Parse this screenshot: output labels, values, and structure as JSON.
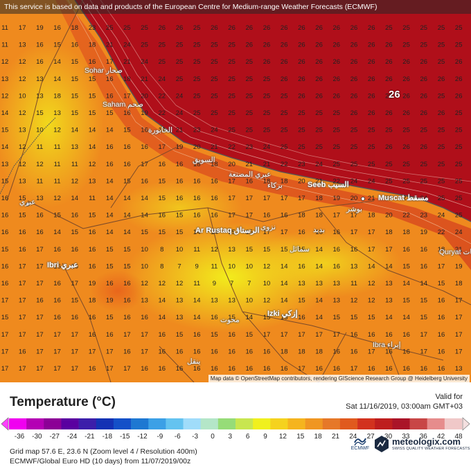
{
  "header": {
    "notice": "This service is based on data and products of the European Centre for Medium-range Weather Forecasts (ECMWF)",
    "attribution": "Map data © OpenStreetMap contributors, rendering GIScience Research Group @ Heidelberg University"
  },
  "map": {
    "max_label": "26",
    "colors": {
      "sea_hot": "#b00f1a",
      "land_warm": "#ef8a1e",
      "land_cool": "#f6d41c"
    },
    "grid_rows": [
      "11 17 19 16 18 23 25 25 25 26 26 25 26 26 26 26 26 26 26 26 26 26 25 25 25 25 25",
      "11 13 16 15 16 18 21 24 25 25 25 25 25 25 26 26 26 26 26 26 26 26 26 25 25 25 25",
      "12 12 16 14 15 16 17 21 24 25 25 25 25 25 25 26 26 26 26 26 26 26 26 26 26 25 26",
      "13 12 13 14 15 15 16 18 21 24 25 25 25 25 25 25 26 26 26 26 26 26 26 26 26 26 26",
      "12 10 13 18 15 15 16 17 20 22 24 25 25 25 25 25 25 26 26 26 26 26 26 26 26 25 26",
      "14 12 15 13 15 15 15 16 19 22 24 25 25 25 25 25 25 25 25 25 26 26 26 26 26 26 25",
      "15 13 10 12 14 14 14 15 16 19 21 23 24 25 25 25 25 25 25 25 25 25 25 25 25 25 25",
      "14 12 11 11 13 14 16 16 16 17 19 20 21 22 23 24 25 25 25 25 25 25 26 26 26 25 25",
      "13 12 12 11 11 12 16 16 17 16 16 18 18 20 21 21 22 23 24 25 25 25 25 25 25 25 25",
      "15 13 11 11 12 13 14 15 16 15 16 16 16 17 16 18 18 20 21 22 24 24 25 25 25 25 25",
      "16 15 13 12 14 11 14 14 14 15 16 16 16 17 17 17 17 17 18 19 20 21 22 23 24 25 25",
      "16 15 16 15 16 15 14 14 14 16 15 16 16 17 17 16 16 18 18 17 17 18 20 22 23 24 25",
      "16 16 16 14 15 16 14 14 15 15 15 14 14 15 15 17 17 16 16 16 17 17 18 18 19 22 24",
      "15 16 17 16 16 16 15 15 10 8 10 11 12 13 15 15 15 15 14 16 16 17 17 16 16 18 21",
      "16 17 17 16 16 16 15 15 10 8 7 9 11 10 10 12 14 16 14 16 13 14 14 15 16 17 19",
      "16 17 17 16 17 19 16 16 12 12 12 11 9 7 7 10 14 13 13 13 11 12 13 14 14 15 18",
      "17 17 16 16 15 18 19 16 13 14 13 14 13 13 10 12 14 15 14 13 12 12 13 15 15 16 17",
      "15 17 17 16 16 16 15 16 16 14 13 14 16 15 14 15 15 16 14 15 15 15 14 14 15 16 17",
      "17 17 17 17 17 16 16 17 17 16 15 16 15 16 15 17 17 17 17 17 16 16 16 16 17 16 17",
      "17 16 17 17 17 17 17 16 17 16 16 16 16 16 16 16 18 18 18 16 16 17 16 16 17 16 17",
      "17 17 17 17 17 16 17 17 16 16 16 16 16 16 16 16 16 17 16 16 17 16 16 16 16 16 13",
      "17 17 17 17 17 16 17 17 16 16 16 16 16 16 16 16 16 17 16 16 17 17 17 17 17 18 17"
    ],
    "cities": [
      {
        "name": "Sohar صحار"
      },
      {
        "name": "Saham صحم"
      },
      {
        "name": "Ibri عبري"
      },
      {
        "name": "Ar Rustaq الرستاق"
      },
      {
        "name": "Izki إزكي"
      },
      {
        "name": "Seeb السيب"
      },
      {
        "name": "Muscat مسقط"
      },
      {
        "name": "Quryat قريات"
      },
      {
        "name": "Ibra إبراء"
      },
      {
        "name": "الخابورة"
      },
      {
        "name": "السويق"
      },
      {
        "name": "عبري المصنعة"
      },
      {
        "name": "بركاء"
      },
      {
        "name": "نزوى"
      },
      {
        "name": "سمائل"
      },
      {
        "name": "بدبد"
      },
      {
        "name": "محوت"
      },
      {
        "name": "عبري"
      },
      {
        "name": "ينقل"
      },
      {
        "name": "بوشر"
      }
    ]
  },
  "legend": {
    "title": "Temperature (°C)",
    "valid_label": "Valid for",
    "valid_time": "Sat 11/16/2019, 03:00am GMT+03",
    "ticks": [
      "-36",
      "-30",
      "-27",
      "-24",
      "-21",
      "-18",
      "-15",
      "-12",
      "-9",
      "-6",
      "-3",
      "0",
      "3",
      "6",
      "9",
      "12",
      "15",
      "18",
      "21",
      "24",
      "27",
      "30",
      "33",
      "36",
      "42",
      "48"
    ],
    "colors": [
      "#f000f0",
      "#b400b4",
      "#8c0096",
      "#5a00a0",
      "#3c1eaa",
      "#1432b4",
      "#1450c8",
      "#1e78d2",
      "#3ca0e6",
      "#64c3f0",
      "#a0dcfa",
      "#b4e6c8",
      "#96dc78",
      "#c8e650",
      "#f0f01e",
      "#f5d21e",
      "#f5b41e",
      "#f09622",
      "#e67828",
      "#e05a1e",
      "#d2321e",
      "#be1e1e",
      "#aa1428",
      "#c84646",
      "#e68c8c",
      "#f0c8c8"
    ],
    "grid_info": "Grid map 57.6 E, 23.6 N (Zoom level 4 / Resolution 400m)",
    "model_info": "ECMWF/Global Euro HD (10 days) from 11/07/2019/00z",
    "ecmwf": "ECMWF",
    "brand": "meteologix.com",
    "tagline": "SWISS QUALITY WEATHER FORECASTS"
  }
}
